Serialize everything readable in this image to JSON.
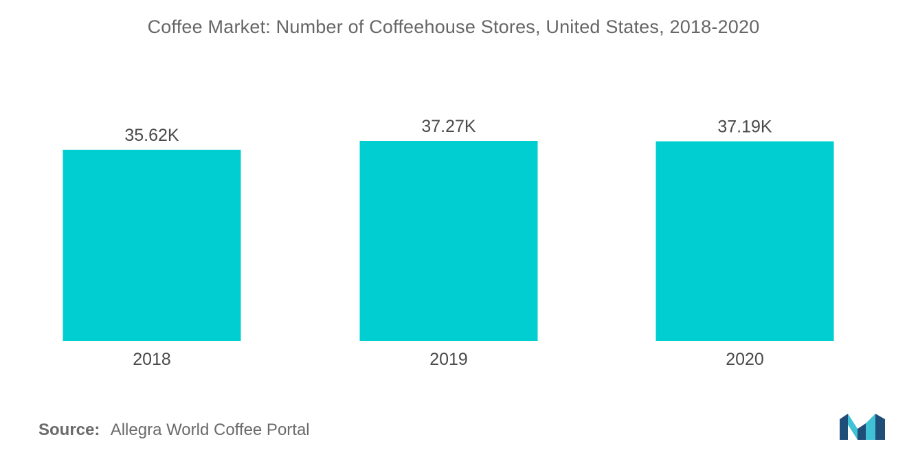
{
  "chart_data": {
    "type": "bar",
    "title": "Coffee Market: Number of Coffeehouse Stores, United States, 2018-2020",
    "categories": [
      "2018",
      "2019",
      "2020"
    ],
    "values": [
      35.62,
      37.27,
      37.19
    ],
    "data_labels": [
      "35.62K",
      "37.27K",
      "37.19K"
    ],
    "unit": "K",
    "xlabel": "",
    "ylabel": "",
    "ylim": [
      0,
      37.27
    ],
    "grid": false,
    "legend": "none",
    "bar_color": "#00ced1"
  },
  "source": {
    "label": "Source:",
    "text": "Allegra World Coffee Portal"
  },
  "logo": {
    "icon": "mordor-intelligence-logo",
    "colors": [
      "#1f4e79",
      "#3fc1d6"
    ]
  }
}
